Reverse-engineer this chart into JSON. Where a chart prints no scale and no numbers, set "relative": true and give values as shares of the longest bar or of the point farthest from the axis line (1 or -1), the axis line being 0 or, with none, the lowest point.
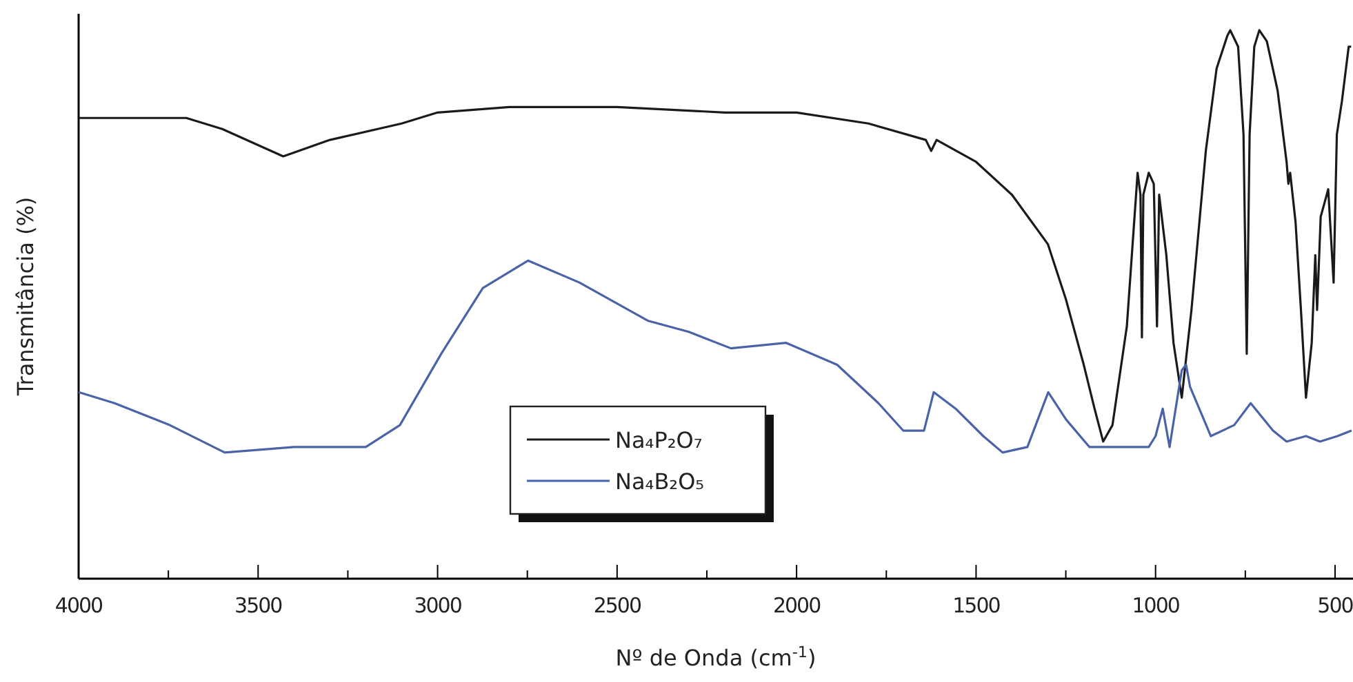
{
  "chart_data": {
    "type": "line",
    "relative": true,
    "xlabel": "Nº de Onda (cm$^{-1}$)",
    "ylabel": "Transmitância (%)",
    "xlim": [
      4000,
      450
    ],
    "xticks": [
      4000,
      {
        "value": 3750,
        "label": null
      },
      3500,
      {
        "value": 3250,
        "label": null
      },
      3000,
      {
        "value": 2750,
        "label": null
      },
      2500,
      {
        "value": 2250,
        "label": null
      },
      2000,
      {
        "value": 1750,
        "label": null
      },
      1500,
      {
        "value": 1250,
        "label": null
      },
      1000,
      {
        "value": 750,
        "label": null
      },
      500
    ],
    "legend": "bottom",
    "grid": false,
    "line_style": "solid",
    "marker": "none",
    "series": [
      {
        "name": "Na₄P₂O₇",
        "color": "#1a1a1a",
        "x": [
          4000,
          3700,
          3600,
          3430,
          3300,
          3100,
          3000,
          2800,
          2500,
          2200,
          2000,
          1800,
          1640,
          1625,
          1610,
          1500,
          1400,
          1300,
          1250,
          1200,
          1170,
          1146,
          1120,
          1080,
          1050,
          1042,
          1038,
          1034,
          1019,
          1005,
          996,
          990,
          970,
          950,
          927,
          900,
          860,
          830,
          800,
          792,
          770,
          755,
          746,
          738,
          725,
          711,
          690,
          660,
          635,
          630,
          625,
          610,
          595,
          581,
          565,
          555,
          550,
          540,
          519,
          504,
          495,
          481,
          462,
          455
        ],
        "values": [
          0.84,
          0.84,
          0.82,
          0.77,
          0.8,
          0.83,
          0.85,
          0.86,
          0.86,
          0.85,
          0.85,
          0.83,
          0.8,
          0.78,
          0.8,
          0.76,
          0.7,
          0.61,
          0.51,
          0.39,
          0.31,
          0.25,
          0.28,
          0.46,
          0.74,
          0.7,
          0.44,
          0.7,
          0.74,
          0.72,
          0.46,
          0.7,
          0.59,
          0.43,
          0.33,
          0.49,
          0.78,
          0.93,
          0.99,
          1.0,
          0.97,
          0.81,
          0.41,
          0.81,
          0.97,
          1.0,
          0.98,
          0.89,
          0.76,
          0.72,
          0.74,
          0.65,
          0.49,
          0.33,
          0.43,
          0.59,
          0.49,
          0.66,
          0.71,
          0.54,
          0.81,
          0.87,
          0.97,
          0.97
        ]
      },
      {
        "name": "Na₄B₂O₅",
        "color": "#4a62a8",
        "x": [
          4000,
          3900,
          3746,
          3593,
          3400,
          3200,
          3105,
          2990,
          2874,
          2748,
          2605,
          2413,
          2300,
          2183,
          2029,
          1887,
          1772,
          1703,
          1645,
          1618,
          1557,
          1480,
          1426,
          1357,
          1299,
          1249,
          1184,
          1019,
          1000,
          980,
          961,
          927,
          915,
          904,
          846,
          781,
          735,
          673,
          635,
          581,
          542,
          493,
          454
        ],
        "values": [
          0.34,
          0.32,
          0.28,
          0.23,
          0.24,
          0.24,
          0.28,
          0.41,
          0.53,
          0.58,
          0.54,
          0.47,
          0.45,
          0.42,
          0.43,
          0.39,
          0.32,
          0.27,
          0.27,
          0.34,
          0.31,
          0.26,
          0.23,
          0.24,
          0.34,
          0.29,
          0.24,
          0.24,
          0.26,
          0.31,
          0.24,
          0.38,
          0.39,
          0.35,
          0.26,
          0.28,
          0.32,
          0.27,
          0.25,
          0.26,
          0.25,
          0.26,
          0.27
        ]
      }
    ]
  }
}
